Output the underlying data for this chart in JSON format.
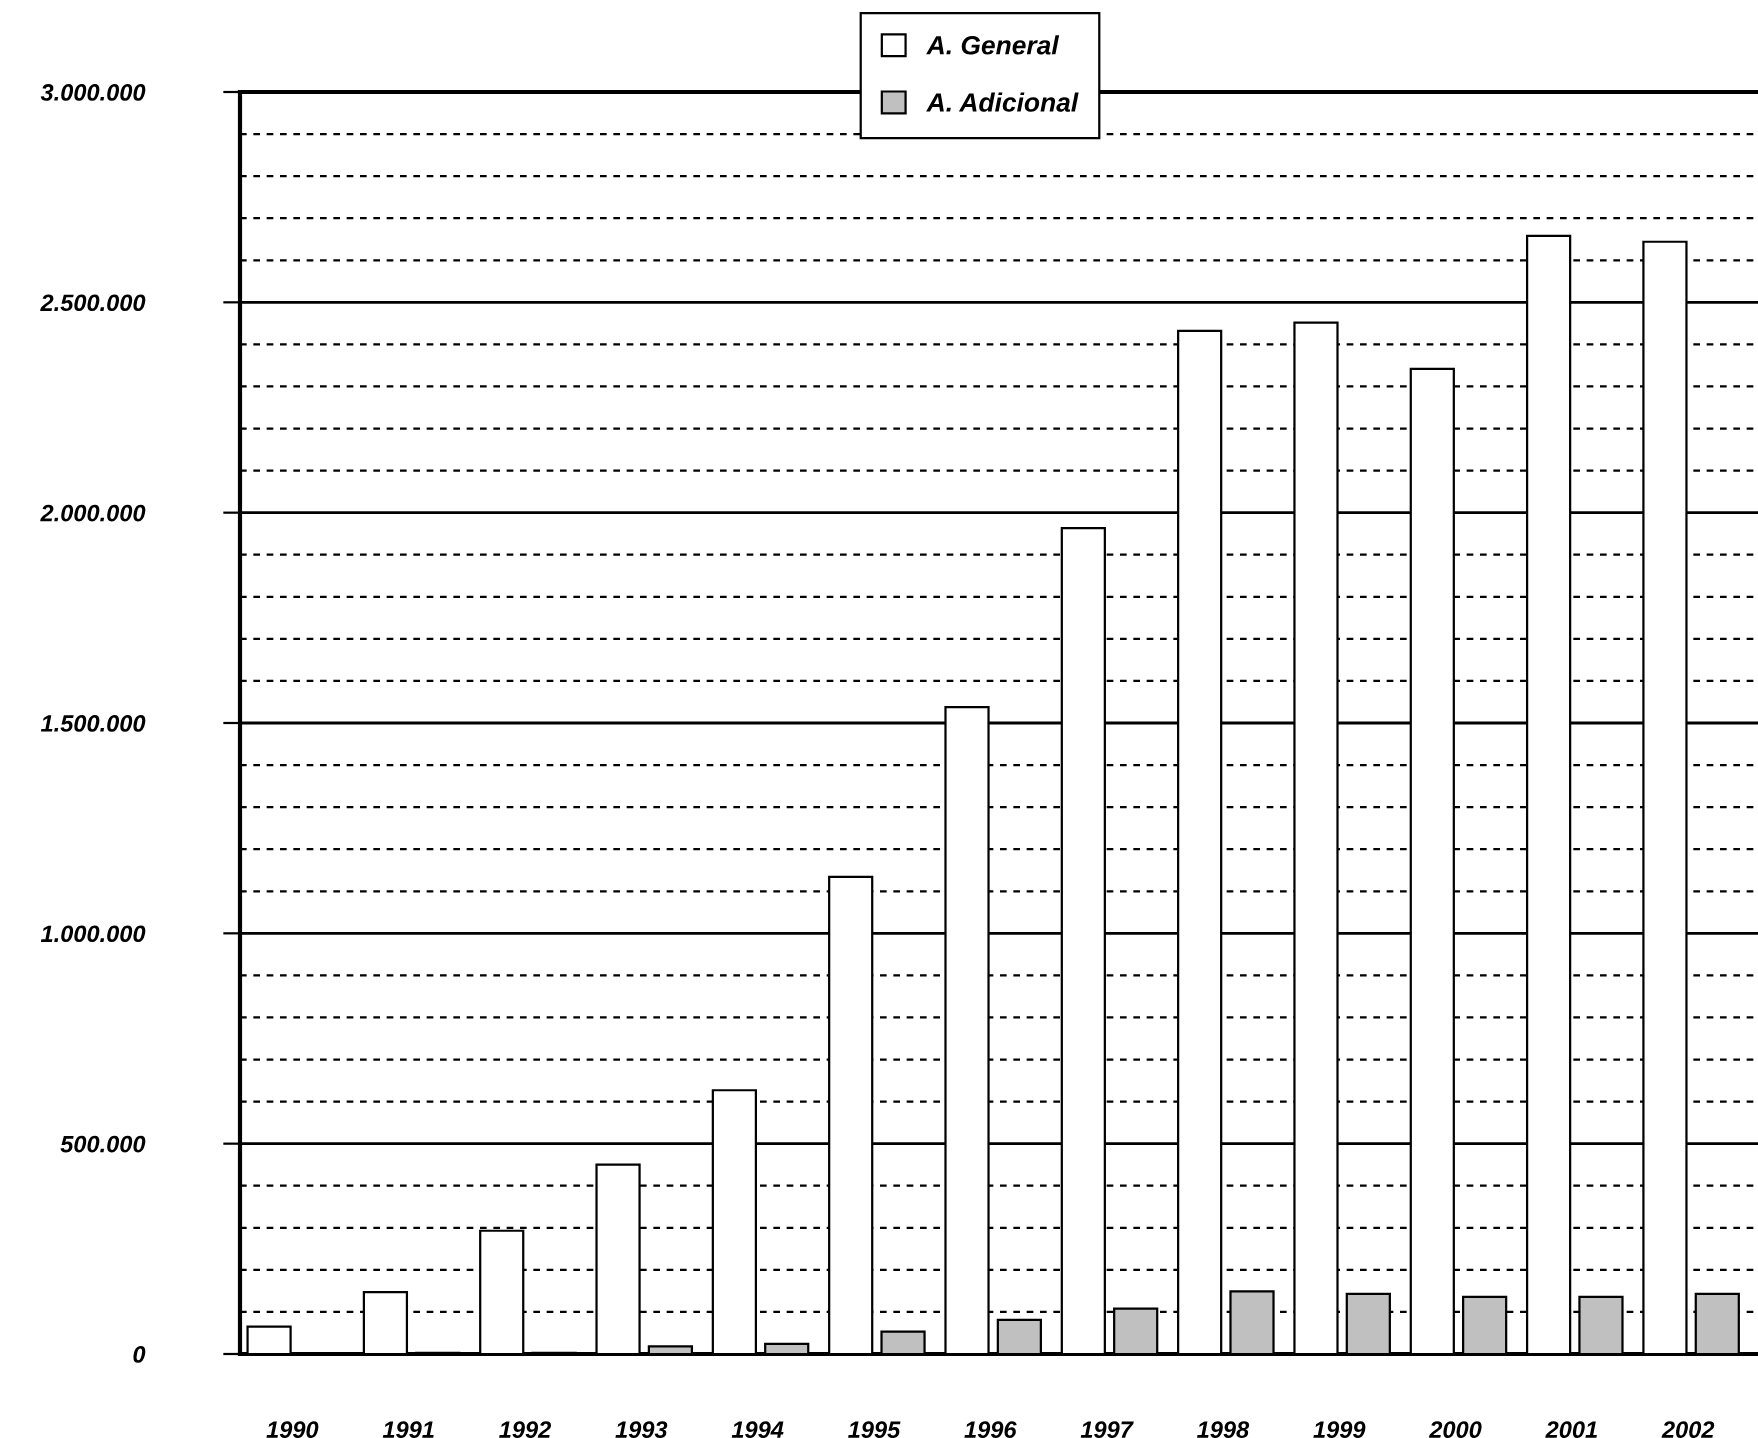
{
  "chart_data": {
    "type": "bar",
    "categories": [
      "1990",
      "1991",
      "1992",
      "1993",
      "1994",
      "1995",
      "1996",
      "1997",
      "1998",
      "1999",
      "2000",
      "2001",
      "2002"
    ],
    "series": [
      {
        "name": "A. General",
        "color": "#ffffff",
        "values": [
          65000,
          147000,
          293000,
          450000,
          627000,
          1134000,
          1538000,
          1963000,
          2432000,
          2452000,
          2342000,
          2658000,
          2644000
        ]
      },
      {
        "name": "A. Adicional",
        "color": "#c0c0c0",
        "values": [
          null,
          3000,
          3000,
          18000,
          24000,
          53000,
          81000,
          108000,
          149000,
          143000,
          136000,
          136000,
          143000
        ]
      }
    ],
    "ylim": [
      0,
      3000000
    ],
    "yticks": [
      {
        "value": 0,
        "label": "0"
      },
      {
        "value": 500000,
        "label": "500.000"
      },
      {
        "value": 1000000,
        "label": "1.000.000"
      },
      {
        "value": 1500000,
        "label": "1.500.000"
      },
      {
        "value": 2000000,
        "label": "2.000.000"
      },
      {
        "value": 2500000,
        "label": "2.500.000"
      },
      {
        "value": 3000000,
        "label": "3.000.000"
      }
    ],
    "grid": "y",
    "legend": "top"
  }
}
